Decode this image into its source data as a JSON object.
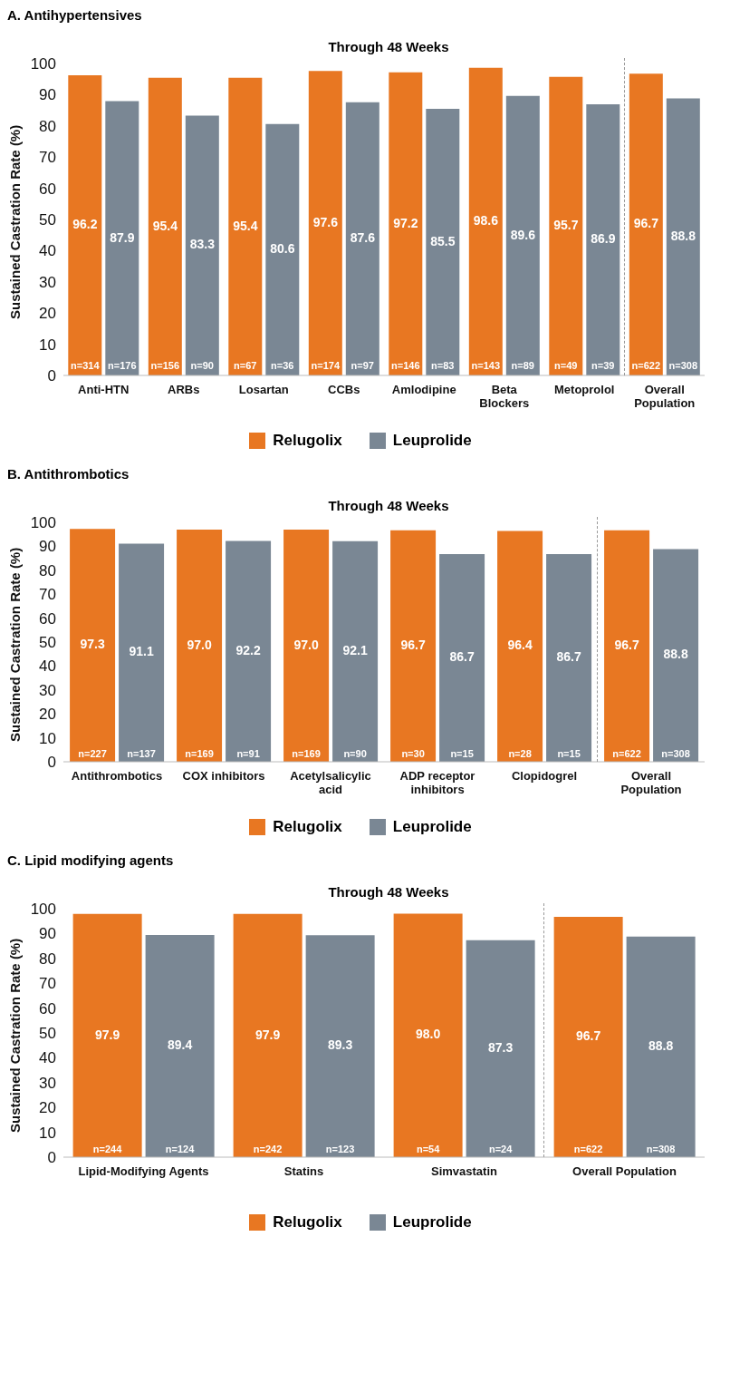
{
  "chart_data": [
    {
      "type": "bar",
      "title": "A. Antihypertensives",
      "subtitle": "Through 48 Weeks",
      "ylabel": "Sustained Castration Rate (%)",
      "categories": [
        "Anti-HTN",
        "ARBs",
        "Losartan",
        "CCBs",
        "Amlodipine",
        "Beta Blockers",
        "Metoprolol",
        "Overall Population"
      ],
      "series": [
        {
          "name": "Relugolix",
          "color": "#e87722",
          "values": [
            96.2,
            95.4,
            95.4,
            97.6,
            97.2,
            98.6,
            95.7,
            96.7
          ],
          "value_labels": [
            "96.2",
            "95.4",
            "95.4",
            "97.6",
            "97.2",
            "98.6",
            "95.7",
            "96.7"
          ]
        },
        {
          "name": "Leuprolide",
          "color": "#7a8794",
          "values": [
            87.9,
            83.3,
            80.6,
            87.6,
            85.5,
            89.6,
            86.9,
            88.8
          ],
          "value_labels": [
            "87.9",
            "83.3",
            "80.6",
            "87.6",
            "85.5",
            "89.6",
            "86.9",
            "88.8"
          ]
        }
      ],
      "ylim": [
        0,
        100
      ],
      "yticks": [
        0,
        10,
        20,
        30,
        40,
        50,
        60,
        70,
        80,
        90,
        100
      ],
      "legend": "bottom",
      "annotations": [
        {
          "text": "n=314",
          "x": "Anti-HTN",
          "y": 3
        },
        {
          "text": "n=176",
          "x": "Anti-HTN",
          "y": 3
        },
        {
          "text": "n=156",
          "x": "ARBs",
          "y": 3
        },
        {
          "text": "n=90",
          "x": "ARBs",
          "y": 3
        },
        {
          "text": "n=67",
          "x": "Losartan",
          "y": 3
        },
        {
          "text": "n=36",
          "x": "Losartan",
          "y": 3
        },
        {
          "text": "n=174",
          "x": "CCBs",
          "y": 3
        },
        {
          "text": "n=97",
          "x": "CCBs",
          "y": 3
        },
        {
          "text": "n=146",
          "x": "Amlodipine",
          "y": 3
        },
        {
          "text": "n=83",
          "x": "Amlodipine",
          "y": 3
        },
        {
          "text": "n=143",
          "x": "Beta Blockers",
          "y": 3
        },
        {
          "text": "n=89",
          "x": "Beta Blockers",
          "y": 3
        },
        {
          "text": "n=49",
          "x": "Metoprolol",
          "y": 3
        },
        {
          "text": "n=39",
          "x": "Metoprolol",
          "y": 3
        },
        {
          "text": "n=622",
          "x": "Overall Population",
          "y": 3
        },
        {
          "text": "n=308",
          "x": "Overall Population",
          "y": 3
        }
      ]
    },
    {
      "type": "bar",
      "title": "B. Antithrombotics",
      "subtitle": "Through 48 Weeks",
      "ylabel": "Sustained Castration Rate (%)",
      "categories": [
        "Antithrombotics",
        "COX inhibitors",
        "Acetylsalicylic acid",
        "ADP receptor inhibitors",
        "Clopidogrel",
        "Overall Population"
      ],
      "series": [
        {
          "name": "Relugolix",
          "color": "#e87722",
          "values": [
            97.3,
            97.0,
            97.0,
            96.7,
            96.4,
            96.7
          ],
          "value_labels": [
            "97.3",
            "97.0",
            "97.0",
            "96.7",
            "96.4",
            "96.7"
          ]
        },
        {
          "name": "Leuprolide",
          "color": "#7a8794",
          "values": [
            91.1,
            92.2,
            92.1,
            86.7,
            86.7,
            88.8
          ],
          "value_labels": [
            "91.1",
            "92.2",
            "92.1",
            "86.7",
            "86.7",
            "88.8"
          ]
        }
      ],
      "ylim": [
        0,
        100
      ],
      "yticks": [
        0,
        10,
        20,
        30,
        40,
        50,
        60,
        70,
        80,
        90,
        100
      ],
      "legend": "bottom",
      "annotations": [
        {
          "text": "n=227",
          "x": "Antithrombotics",
          "y": 3
        },
        {
          "text": "n=137",
          "x": "Antithrombotics",
          "y": 3
        },
        {
          "text": "n=169",
          "x": "COX inhibitors",
          "y": 3
        },
        {
          "text": "n=91",
          "x": "COX inhibitors",
          "y": 3
        },
        {
          "text": "n=169",
          "x": "Acetylsalicylic acid",
          "y": 3
        },
        {
          "text": "n=90",
          "x": "Acetylsalicylic acid",
          "y": 3
        },
        {
          "text": "n=30",
          "x": "ADP receptor inhibitors",
          "y": 3
        },
        {
          "text": "n=15",
          "x": "ADP receptor inhibitors",
          "y": 3
        },
        {
          "text": "n=28",
          "x": "Clopidogrel",
          "y": 3
        },
        {
          "text": "n=15",
          "x": "Clopidogrel",
          "y": 3
        },
        {
          "text": "n=622",
          "x": "Overall Population",
          "y": 3
        },
        {
          "text": "n=308",
          "x": "Overall Population",
          "y": 3
        }
      ]
    },
    {
      "type": "bar",
      "title": "C. Lipid modifying agents",
      "subtitle": "Through 48 Weeks",
      "ylabel": "Sustained Castration Rate (%)",
      "categories": [
        "Lipid-Modifying Agents",
        "Statins",
        "Simvastatin",
        "Overall Population"
      ],
      "series": [
        {
          "name": "Relugolix",
          "color": "#e87722",
          "values": [
            97.9,
            97.9,
            98.0,
            96.7
          ],
          "value_labels": [
            "97.9",
            "97.9",
            "98.0",
            "96.7"
          ]
        },
        {
          "name": "Leuprolide",
          "color": "#7a8794",
          "values": [
            89.4,
            89.3,
            87.3,
            88.8
          ],
          "value_labels": [
            "89.4",
            "89.3",
            "87.3",
            "88.8"
          ]
        }
      ],
      "ylim": [
        0,
        100
      ],
      "yticks": [
        0,
        10,
        20,
        30,
        40,
        50,
        60,
        70,
        80,
        90,
        100
      ],
      "legend": "bottom",
      "annotations": [
        {
          "text": "n=244",
          "x": "Lipid-Modifying Agents",
          "y": 3
        },
        {
          "text": "n=124",
          "x": "Lipid-Modifying Agents",
          "y": 3
        },
        {
          "text": "n=242",
          "x": "Statins",
          "y": 3
        },
        {
          "text": "n=123",
          "x": "Statins",
          "y": 3
        },
        {
          "text": "n=54",
          "x": "Simvastatin",
          "y": 3
        },
        {
          "text": "n=24",
          "x": "Simvastatin",
          "y": 3
        },
        {
          "text": "n=622",
          "x": "Overall Population",
          "y": 3
        },
        {
          "text": "n=308",
          "x": "Overall Population",
          "y": 3
        }
      ]
    }
  ]
}
